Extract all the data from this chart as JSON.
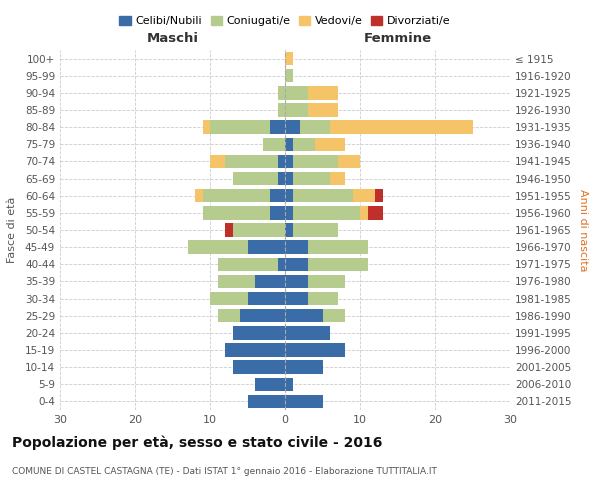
{
  "age_groups": [
    "0-4",
    "5-9",
    "10-14",
    "15-19",
    "20-24",
    "25-29",
    "30-34",
    "35-39",
    "40-44",
    "45-49",
    "50-54",
    "55-59",
    "60-64",
    "65-69",
    "70-74",
    "75-79",
    "80-84",
    "85-89",
    "90-94",
    "95-99",
    "100+"
  ],
  "birth_years": [
    "2011-2015",
    "2006-2010",
    "2001-2005",
    "1996-2000",
    "1991-1995",
    "1986-1990",
    "1981-1985",
    "1976-1980",
    "1971-1975",
    "1966-1970",
    "1961-1965",
    "1956-1960",
    "1951-1955",
    "1946-1950",
    "1941-1945",
    "1936-1940",
    "1931-1935",
    "1926-1930",
    "1921-1925",
    "1916-1920",
    "≤ 1915"
  ],
  "colors": {
    "celibi": "#3a6ca8",
    "coniugati": "#b5cc8e",
    "vedovi": "#f5c469",
    "divorziati": "#c0302a"
  },
  "maschi": {
    "celibi": [
      5,
      4,
      7,
      8,
      7,
      6,
      5,
      4,
      1,
      5,
      0,
      2,
      2,
      1,
      1,
      0,
      2,
      0,
      0,
      0,
      0
    ],
    "coniugati": [
      0,
      0,
      0,
      0,
      0,
      3,
      5,
      5,
      8,
      8,
      7,
      9,
      9,
      6,
      7,
      3,
      8,
      1,
      1,
      0,
      0
    ],
    "vedovi": [
      0,
      0,
      0,
      0,
      0,
      0,
      0,
      0,
      0,
      0,
      0,
      0,
      1,
      0,
      2,
      0,
      1,
      0,
      0,
      0,
      0
    ],
    "divorziati": [
      0,
      0,
      0,
      0,
      0,
      0,
      0,
      0,
      0,
      0,
      1,
      0,
      0,
      0,
      0,
      0,
      0,
      0,
      0,
      0,
      0
    ]
  },
  "femmine": {
    "celibi": [
      5,
      1,
      5,
      8,
      6,
      5,
      3,
      3,
      3,
      3,
      1,
      1,
      1,
      1,
      1,
      1,
      2,
      0,
      0,
      0,
      0
    ],
    "coniugati": [
      0,
      0,
      0,
      0,
      0,
      3,
      4,
      5,
      8,
      8,
      6,
      9,
      8,
      5,
      6,
      3,
      4,
      3,
      3,
      1,
      0
    ],
    "vedovi": [
      0,
      0,
      0,
      0,
      0,
      0,
      0,
      0,
      0,
      0,
      0,
      1,
      3,
      2,
      3,
      4,
      19,
      4,
      4,
      0,
      1
    ],
    "divorziati": [
      0,
      0,
      0,
      0,
      0,
      0,
      0,
      0,
      0,
      0,
      0,
      2,
      1,
      0,
      0,
      0,
      0,
      0,
      0,
      0,
      0
    ]
  },
  "xlim": 30,
  "title": "Popolazione per età, sesso e stato civile - 2016",
  "subtitle": "COMUNE DI CASTEL CASTAGNA (TE) - Dati ISTAT 1° gennaio 2016 - Elaborazione TUTTITALIA.IT",
  "ylabel_left": "Fasce di età",
  "ylabel_right": "Anni di nascita",
  "xlabel_left": "Maschi",
  "xlabel_right": "Femmine"
}
